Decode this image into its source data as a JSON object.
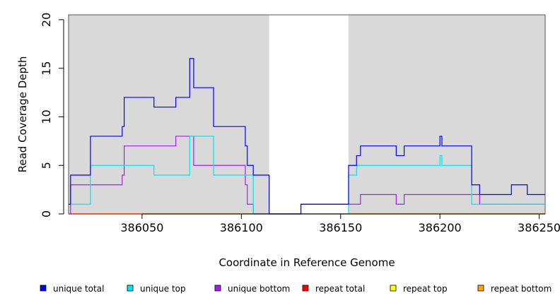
{
  "chart_data": {
    "type": "line",
    "xlabel": "Coordinate in Reference Genome",
    "ylabel": "Read Coverage Depth",
    "xlim": [
      386013,
      386253
    ],
    "ylim": [
      0,
      20.5
    ],
    "x_ticks": [
      386050,
      386100,
      386150,
      386200,
      386250
    ],
    "y_ticks": [
      0,
      5,
      10,
      15,
      20
    ],
    "shaded_regions": [
      [
        386013,
        386114
      ],
      [
        386154,
        386253
      ]
    ],
    "shade_color": "#d9d9d9",
    "legend_placement": "bottom",
    "series": [
      {
        "name": "unique total",
        "color": "#0000ff",
        "points": [
          [
            386013,
            1
          ],
          [
            386014,
            1
          ],
          [
            386014,
            4
          ],
          [
            386024,
            4
          ],
          [
            386024,
            8
          ],
          [
            386040,
            8
          ],
          [
            386040,
            9
          ],
          [
            386041,
            9
          ],
          [
            386041,
            12
          ],
          [
            386056,
            12
          ],
          [
            386056,
            11
          ],
          [
            386067,
            11
          ],
          [
            386067,
            12
          ],
          [
            386074,
            12
          ],
          [
            386074,
            16
          ],
          [
            386076,
            16
          ],
          [
            386076,
            13
          ],
          [
            386086,
            13
          ],
          [
            386086,
            9
          ],
          [
            386102,
            9
          ],
          [
            386102,
            7
          ],
          [
            386103,
            7
          ],
          [
            386103,
            5
          ],
          [
            386106,
            5
          ],
          [
            386106,
            4
          ],
          [
            386114,
            4
          ],
          [
            386114,
            0
          ],
          [
            386130,
            0
          ],
          [
            386130,
            1
          ],
          [
            386154,
            1
          ],
          [
            386154,
            5
          ],
          [
            386158,
            5
          ],
          [
            386158,
            6
          ],
          [
            386160,
            6
          ],
          [
            386160,
            7
          ],
          [
            386178,
            7
          ],
          [
            386178,
            6
          ],
          [
            386182,
            6
          ],
          [
            386182,
            7
          ],
          [
            386200,
            7
          ],
          [
            386200,
            8
          ],
          [
            386201,
            8
          ],
          [
            386201,
            7
          ],
          [
            386216,
            7
          ],
          [
            386216,
            3
          ],
          [
            386220,
            3
          ],
          [
            386220,
            2
          ],
          [
            386236,
            2
          ],
          [
            386236,
            3
          ],
          [
            386244,
            3
          ],
          [
            386244,
            2
          ],
          [
            386253,
            2
          ]
        ]
      },
      {
        "name": "unique top",
        "color": "#00e5ee",
        "points": [
          [
            386013,
            1
          ],
          [
            386024,
            1
          ],
          [
            386024,
            5
          ],
          [
            386056,
            5
          ],
          [
            386056,
            4
          ],
          [
            386074,
            4
          ],
          [
            386074,
            8
          ],
          [
            386086,
            8
          ],
          [
            386086,
            4
          ],
          [
            386106,
            4
          ],
          [
            386106,
            0
          ],
          [
            386154,
            0
          ],
          [
            386154,
            4
          ],
          [
            386158,
            4
          ],
          [
            386158,
            5
          ],
          [
            386200,
            5
          ],
          [
            386200,
            6
          ],
          [
            386201,
            6
          ],
          [
            386201,
            5
          ],
          [
            386216,
            5
          ],
          [
            386216,
            1
          ],
          [
            386253,
            1
          ]
        ]
      },
      {
        "name": "unique bottom",
        "color": "#a020f0",
        "points": [
          [
            386013,
            0
          ],
          [
            386014,
            0
          ],
          [
            386014,
            3
          ],
          [
            386040,
            3
          ],
          [
            386040,
            4
          ],
          [
            386041,
            4
          ],
          [
            386041,
            7
          ],
          [
            386067,
            7
          ],
          [
            386067,
            8
          ],
          [
            386076,
            8
          ],
          [
            386076,
            5
          ],
          [
            386102,
            5
          ],
          [
            386102,
            3
          ],
          [
            386103,
            3
          ],
          [
            386103,
            1
          ],
          [
            386106,
            1
          ],
          [
            386106,
            0
          ],
          [
            386130,
            0
          ],
          [
            386130,
            1
          ],
          [
            386160,
            1
          ],
          [
            386160,
            2
          ],
          [
            386178,
            2
          ],
          [
            386178,
            1
          ],
          [
            386182,
            1
          ],
          [
            386182,
            2
          ],
          [
            386220,
            2
          ],
          [
            386220,
            1
          ],
          [
            386253,
            1
          ]
        ]
      },
      {
        "name": "repeat total",
        "color": "#ff0000",
        "points": [
          [
            386013,
            0
          ],
          [
            386253,
            0
          ]
        ]
      },
      {
        "name": "repeat top",
        "color": "#ffff00",
        "points": [
          [
            386013,
            0
          ],
          [
            386253,
            0
          ]
        ]
      },
      {
        "name": "repeat bottom",
        "color": "#ffa500",
        "points": [
          [
            386013,
            0
          ],
          [
            386253,
            0
          ]
        ]
      }
    ]
  }
}
